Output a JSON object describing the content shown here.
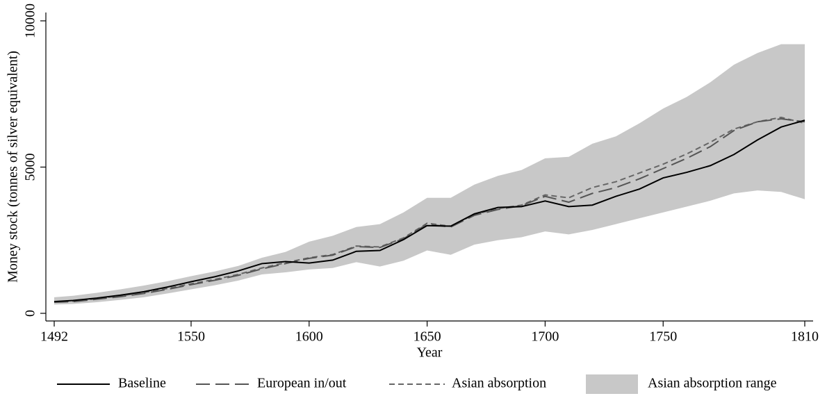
{
  "chart_data": {
    "type": "line",
    "xlabel": "Year",
    "ylabel": "Money stock (tonnes of silver equivalent)",
    "xlim": [
      1492,
      1810
    ],
    "xticks": [
      1492,
      1550,
      1600,
      1650,
      1700,
      1750,
      1810
    ],
    "ylim": [
      0,
      10000
    ],
    "yticks": [
      0,
      5000,
      10000
    ],
    "x": [
      1492,
      1500,
      1510,
      1520,
      1530,
      1540,
      1550,
      1560,
      1570,
      1580,
      1590,
      1600,
      1610,
      1620,
      1630,
      1640,
      1650,
      1660,
      1670,
      1680,
      1690,
      1700,
      1710,
      1720,
      1730,
      1740,
      1750,
      1760,
      1770,
      1780,
      1790,
      1800,
      1810
    ],
    "series": [
      {
        "name": "Baseline",
        "color": "#000000",
        "dash": "none",
        "values": [
          400,
          440,
          520,
          620,
          740,
          900,
          1080,
          1250,
          1450,
          1700,
          1770,
          1720,
          1820,
          2120,
          2150,
          2520,
          3000,
          2980,
          3400,
          3620,
          3650,
          3840,
          3650,
          3700,
          4000,
          4250,
          4630,
          4820,
          5050,
          5430,
          5930,
          6370,
          6600
        ]
      },
      {
        "name": "European in/out",
        "color": "#555555",
        "dash": "20 8",
        "values": [
          380,
          400,
          480,
          570,
          680,
          820,
          980,
          1130,
          1300,
          1520,
          1700,
          1880,
          1990,
          2280,
          2250,
          2550,
          3050,
          2950,
          3350,
          3550,
          3680,
          4000,
          3800,
          4100,
          4300,
          4600,
          4950,
          5300,
          5700,
          6250,
          6550,
          6650,
          6550
        ]
      },
      {
        "name": "Asian absorption",
        "color": "#666666",
        "dash": "8 5",
        "values": [
          400,
          420,
          500,
          600,
          710,
          850,
          1010,
          1160,
          1330,
          1550,
          1730,
          1900,
          2010,
          2300,
          2270,
          2580,
          3080,
          2980,
          3380,
          3580,
          3700,
          4050,
          3950,
          4300,
          4500,
          4800,
          5100,
          5450,
          5850,
          6300,
          6550,
          6700,
          6500
        ]
      }
    ],
    "band": {
      "name": "Asian absorption range",
      "color": "#c8c8c8",
      "upper": [
        550,
        600,
        700,
        820,
        950,
        1100,
        1270,
        1430,
        1620,
        1900,
        2100,
        2450,
        2650,
        2950,
        3050,
        3450,
        3950,
        3950,
        4400,
        4700,
        4900,
        5300,
        5350,
        5800,
        6050,
        6500,
        7000,
        7400,
        7900,
        8500,
        8900,
        9200,
        9200
      ],
      "lower": [
        300,
        320,
        380,
        460,
        550,
        680,
        820,
        960,
        1120,
        1330,
        1400,
        1500,
        1550,
        1750,
        1600,
        1800,
        2150,
        2000,
        2350,
        2500,
        2600,
        2800,
        2700,
        2850,
        3050,
        3250,
        3450,
        3650,
        3850,
        4100,
        4200,
        4150,
        3900
      ]
    }
  }
}
